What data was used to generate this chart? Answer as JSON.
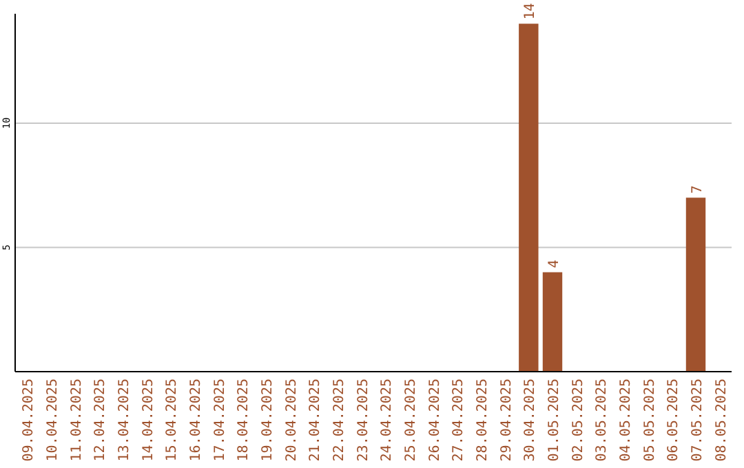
{
  "chart_data": {
    "type": "bar",
    "categories": [
      "09.04.2025",
      "10.04.2025",
      "11.04.2025",
      "12.04.2025",
      "13.04.2025",
      "14.04.2025",
      "15.04.2025",
      "16.04.2025",
      "17.04.2025",
      "18.04.2025",
      "19.04.2025",
      "20.04.2025",
      "21.04.2025",
      "22.04.2025",
      "23.04.2025",
      "24.04.2025",
      "25.04.2025",
      "26.04.2025",
      "27.04.2025",
      "28.04.2025",
      "29.04.2025",
      "30.04.2025",
      "01.05.2025",
      "02.05.2025",
      "03.05.2025",
      "04.05.2025",
      "05.05.2025",
      "06.05.2025",
      "07.05.2025",
      "08.05.2025"
    ],
    "values": [
      0,
      0,
      0,
      0,
      0,
      0,
      0,
      0,
      0,
      0,
      0,
      0,
      0,
      0,
      0,
      0,
      0,
      0,
      0,
      0,
      0,
      14,
      4,
      0,
      0,
      0,
      0,
      0,
      7,
      0
    ],
    "value_labels": [
      null,
      null,
      null,
      null,
      null,
      null,
      null,
      null,
      null,
      null,
      null,
      null,
      null,
      null,
      null,
      null,
      null,
      null,
      null,
      null,
      null,
      "14",
      "4",
      null,
      null,
      null,
      null,
      null,
      "7",
      null
    ],
    "color": "#a0522d",
    "ylim": [
      0,
      14.4
    ],
    "yticks": [
      5,
      10
    ],
    "grid": "y"
  }
}
